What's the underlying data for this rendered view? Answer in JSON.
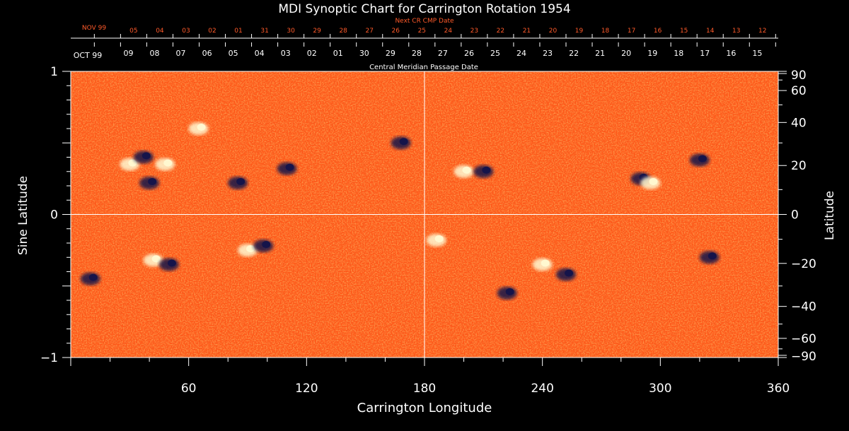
{
  "chart_data": {
    "type": "heatmap",
    "title": "MDI Synoptic Chart for Carrington Rotation 1954",
    "xlabel": "Carrington Longitude",
    "ylabel_left": "Sine Latitude",
    "ylabel_right": "Latitude",
    "xlim": [
      0,
      360
    ],
    "ylim": [
      -1,
      1
    ],
    "x_ticks": [
      "60",
      "120",
      "180",
      "240",
      "300",
      "360"
    ],
    "x_tick_values": [
      60,
      120,
      180,
      240,
      300,
      360
    ],
    "y_left_ticks": [
      "1",
      "0",
      "−1"
    ],
    "y_left_tick_values": [
      1,
      0,
      -1
    ],
    "y_right_ticks": [
      "90",
      "60",
      "40",
      "20",
      "0",
      "−20",
      "−40",
      "−60",
      "−90"
    ],
    "y_right_tick_values": [
      90,
      60,
      40,
      20,
      0,
      -20,
      -40,
      -60,
      -90
    ],
    "top_axis_label": "Next CR CMP Date",
    "top_axis_month": "NOV 99",
    "top_axis_dates": [
      "05",
      "04",
      "03",
      "02",
      "01",
      "31",
      "30",
      "29",
      "28",
      "27",
      "26",
      "25",
      "24",
      "23",
      "22",
      "21",
      "20",
      "19",
      "18",
      "17",
      "16",
      "15",
      "14",
      "13",
      "12"
    ],
    "bottom_axis_label": "Central Meridian Passage Date",
    "bottom_axis_month": "OCT 99",
    "bottom_axis_dates": [
      "09",
      "08",
      "07",
      "06",
      "05",
      "04",
      "03",
      "02",
      "01",
      "30",
      "29",
      "28",
      "27",
      "26",
      "25",
      "24",
      "23",
      "22",
      "21",
      "20",
      "19",
      "18",
      "17",
      "16",
      "15"
    ],
    "colors": {
      "background_field": "#ff5a1a",
      "positive_polarity": "#fff8d0",
      "negative_polarity": "#15144a",
      "top_date_color": "#ff5a2a"
    },
    "active_regions": [
      {
        "lon": 30,
        "sinlat": 0.35,
        "polarity": "positive"
      },
      {
        "lon": 37,
        "sinlat": 0.4,
        "polarity": "negative"
      },
      {
        "lon": 40,
        "sinlat": 0.22,
        "polarity": "negative"
      },
      {
        "lon": 48,
        "sinlat": 0.35,
        "polarity": "positive"
      },
      {
        "lon": 65,
        "sinlat": 0.6,
        "polarity": "positive"
      },
      {
        "lon": 85,
        "sinlat": 0.22,
        "polarity": "negative"
      },
      {
        "lon": 110,
        "sinlat": 0.32,
        "polarity": "negative"
      },
      {
        "lon": 168,
        "sinlat": 0.5,
        "polarity": "negative"
      },
      {
        "lon": 200,
        "sinlat": 0.3,
        "polarity": "positive"
      },
      {
        "lon": 210,
        "sinlat": 0.3,
        "polarity": "negative"
      },
      {
        "lon": 290,
        "sinlat": 0.25,
        "polarity": "negative"
      },
      {
        "lon": 295,
        "sinlat": 0.22,
        "polarity": "positive"
      },
      {
        "lon": 320,
        "sinlat": 0.38,
        "polarity": "negative"
      },
      {
        "lon": 10,
        "sinlat": -0.45,
        "polarity": "negative"
      },
      {
        "lon": 42,
        "sinlat": -0.32,
        "polarity": "positive"
      },
      {
        "lon": 50,
        "sinlat": -0.35,
        "polarity": "negative"
      },
      {
        "lon": 90,
        "sinlat": -0.25,
        "polarity": "positive"
      },
      {
        "lon": 98,
        "sinlat": -0.22,
        "polarity": "negative"
      },
      {
        "lon": 186,
        "sinlat": -0.18,
        "polarity": "positive"
      },
      {
        "lon": 240,
        "sinlat": -0.35,
        "polarity": "positive"
      },
      {
        "lon": 252,
        "sinlat": -0.42,
        "polarity": "negative"
      },
      {
        "lon": 222,
        "sinlat": -0.55,
        "polarity": "negative"
      },
      {
        "lon": 325,
        "sinlat": -0.3,
        "polarity": "negative"
      }
    ]
  }
}
